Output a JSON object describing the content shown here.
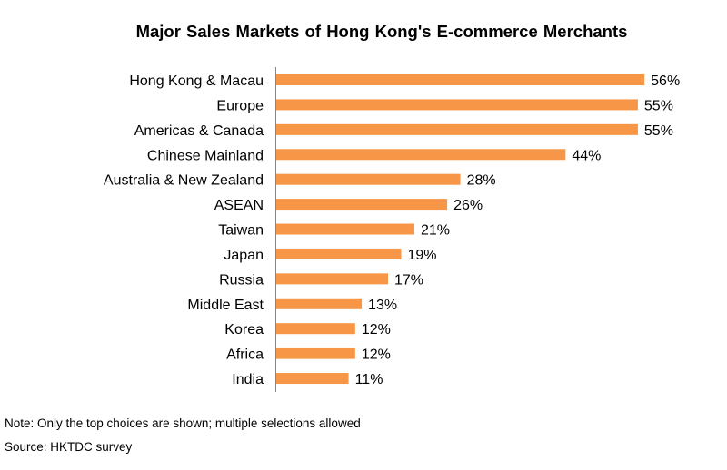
{
  "chart_data": {
    "type": "bar",
    "orientation": "horizontal",
    "title": "Major Sales Markets of Hong Kong's E-commerce Merchants",
    "categories": [
      "Hong Kong & Macau",
      "Europe",
      "Americas & Canada",
      "Chinese Mainland",
      "Australia & New Zealand",
      "ASEAN",
      "Taiwan",
      "Japan",
      "Russia",
      "Middle East",
      "Korea",
      "Africa",
      "India"
    ],
    "values": [
      56,
      55,
      55,
      44,
      28,
      26,
      21,
      19,
      17,
      13,
      12,
      12,
      11
    ],
    "value_labels": [
      "56%",
      "55%",
      "55%",
      "44%",
      "28%",
      "26%",
      "21%",
      "19%",
      "17%",
      "13%",
      "12%",
      "12%",
      "11%"
    ],
    "xlim": [
      0,
      60
    ],
    "grid": false,
    "legend": "none",
    "bar_color": "#F79646",
    "axis_color": "#868686"
  },
  "notes": {
    "note": "Note: Only the top choices are shown; multiple selections allowed",
    "source": "Source: HKTDC survey"
  }
}
